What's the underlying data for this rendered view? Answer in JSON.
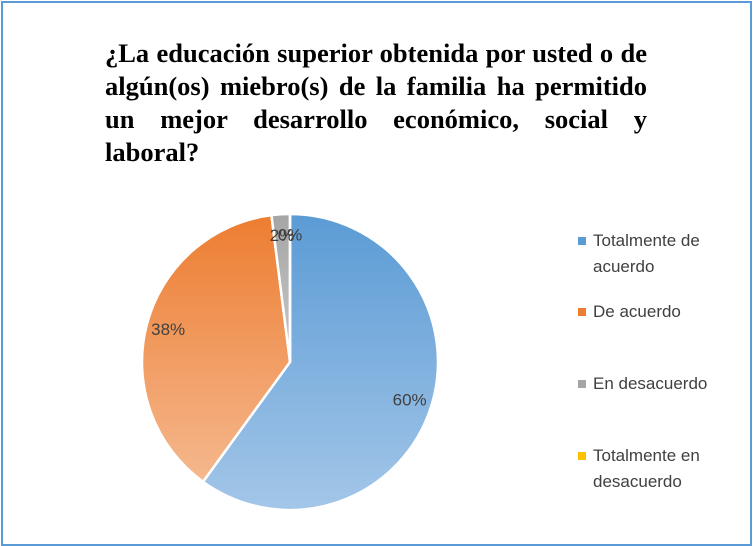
{
  "chart_data": {
    "type": "pie",
    "title": "¿La educación superior obtenida por usted o de algún(os) miebro(s) de la familia ha permitido un mejor desarrollo económico, social y laboral?",
    "categories": [
      "Totalmente de acuerdo",
      "De acuerdo",
      "En desacuerdo",
      "Totalmente en desacuerdo"
    ],
    "values": [
      60,
      38,
      2,
      0
    ],
    "value_labels": [
      "60%",
      "38%",
      "2%",
      "0%"
    ],
    "colors": [
      "#5b9bd5",
      "#ed7d31",
      "#a5a5a5",
      "#ffc000"
    ],
    "legend": "right"
  }
}
